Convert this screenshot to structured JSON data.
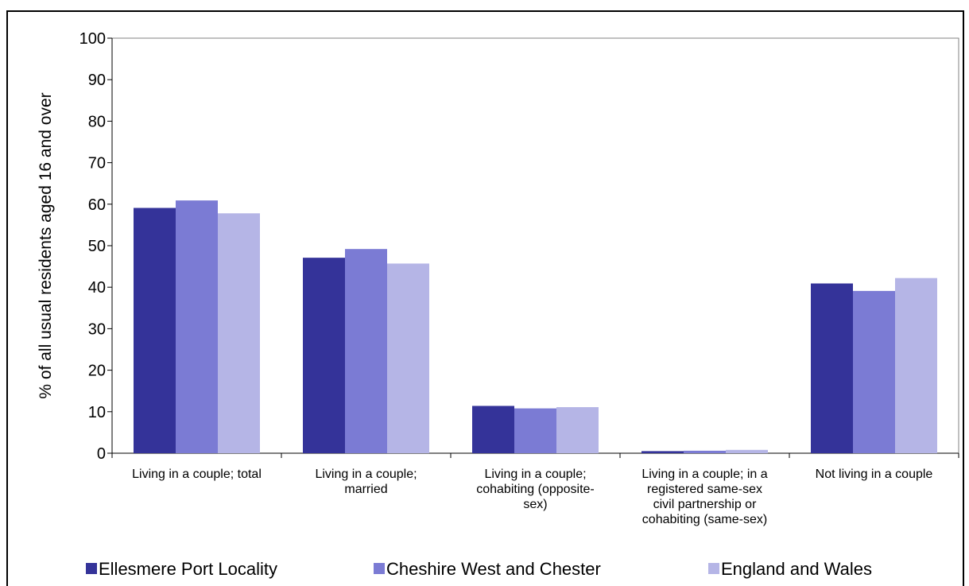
{
  "chart_data": {
    "type": "bar",
    "categories": [
      "Living in a couple; total",
      "Living in a couple; married",
      "Living in a couple; cohabiting (opposite-sex)",
      "Living in a couple; in a registered same-sex civil partnership or cohabiting (same-sex)",
      "Not living in a couple"
    ],
    "category_lines": [
      [
        "Living in a couple; total"
      ],
      [
        "Living in a couple;",
        "married"
      ],
      [
        "Living in a couple;",
        "cohabiting (opposite-",
        "sex)"
      ],
      [
        "Living in a couple; in a",
        "registered same-sex",
        "civil partnership or",
        "cohabiting (same-sex)"
      ],
      [
        "Not living in a couple"
      ]
    ],
    "series": [
      {
        "name": "Ellesmere Port Locality",
        "color": "#343399",
        "values": [
          59.1,
          47.1,
          11.4,
          0.5,
          40.9
        ]
      },
      {
        "name": "Cheshire West and Chester",
        "color": "#7b7bd4",
        "values": [
          60.9,
          49.2,
          10.8,
          0.6,
          39.1
        ]
      },
      {
        "name": "England and Wales",
        "color": "#b5b5e6",
        "values": [
          57.8,
          45.7,
          11.1,
          0.8,
          42.2
        ]
      }
    ],
    "ylabel": "% of all usual residents aged 16 and over",
    "ylim": [
      0,
      100
    ],
    "yticks": [
      0,
      10,
      20,
      30,
      40,
      50,
      60,
      70,
      80,
      90,
      100
    ],
    "legend_position": "bottom",
    "grid": false
  }
}
